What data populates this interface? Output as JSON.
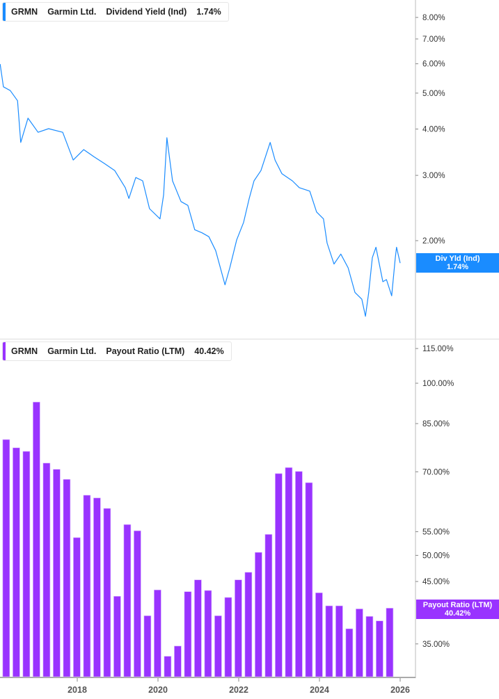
{
  "top_legend": {
    "ticker": "GRMN",
    "company": "Garmin Ltd.",
    "metric": "Dividend Yield (Ind)",
    "value": "1.74%"
  },
  "bottom_legend": {
    "ticker": "GRMN",
    "company": "Garmin Ltd.",
    "metric": "Payout Ratio (LTM)",
    "value": "40.42%"
  },
  "top_tag": {
    "label": "Div Yld (Ind)",
    "value": "1.74%"
  },
  "bottom_tag": {
    "label": "Payout Ratio (LTM)",
    "value": "40.42%"
  },
  "colors": {
    "line": "#1a8cff",
    "bars": "#9933ff",
    "tag_blue": "#1a8cff",
    "tag_purple": "#9933ff"
  },
  "chart_data": [
    {
      "type": "line",
      "title": "Dividend Yield (Ind)",
      "yscale": "log",
      "ylim": [
        1.2,
        9.0
      ],
      "yticks": [
        "8.00%",
        "7.00%",
        "6.00%",
        "5.00%",
        "4.00%",
        "3.00%",
        "2.00%"
      ],
      "ytick_values": [
        8,
        7,
        6,
        5,
        4,
        3,
        2
      ],
      "points": [
        [
          2016.09,
          5.99
        ],
        [
          2016.17,
          5.2
        ],
        [
          2016.34,
          5.08
        ],
        [
          2016.52,
          4.77
        ],
        [
          2016.6,
          3.68
        ],
        [
          2016.78,
          4.28
        ],
        [
          2017.03,
          3.92
        ],
        [
          2017.29,
          4.01
        ],
        [
          2017.64,
          3.92
        ],
        [
          2017.9,
          3.3
        ],
        [
          2018.16,
          3.52
        ],
        [
          2018.41,
          3.37
        ],
        [
          2018.67,
          3.23
        ],
        [
          2018.93,
          3.09
        ],
        [
          2019.19,
          2.78
        ],
        [
          2019.28,
          2.6
        ],
        [
          2019.45,
          2.96
        ],
        [
          2019.62,
          2.9
        ],
        [
          2019.79,
          2.44
        ],
        [
          2020.05,
          2.29
        ],
        [
          2020.14,
          2.66
        ],
        [
          2020.22,
          3.79
        ],
        [
          2020.36,
          2.9
        ],
        [
          2020.57,
          2.55
        ],
        [
          2020.74,
          2.49
        ],
        [
          2020.91,
          2.14
        ],
        [
          2021.09,
          2.1
        ],
        [
          2021.26,
          2.05
        ],
        [
          2021.43,
          1.88
        ],
        [
          2021.66,
          1.52
        ],
        [
          2021.78,
          1.69
        ],
        [
          2021.95,
          2.01
        ],
        [
          2022.12,
          2.24
        ],
        [
          2022.26,
          2.6
        ],
        [
          2022.38,
          2.9
        ],
        [
          2022.55,
          3.09
        ],
        [
          2022.78,
          3.68
        ],
        [
          2022.9,
          3.3
        ],
        [
          2023.07,
          3.03
        ],
        [
          2023.33,
          2.9
        ],
        [
          2023.5,
          2.78
        ],
        [
          2023.76,
          2.72
        ],
        [
          2023.93,
          2.39
        ],
        [
          2024.1,
          2.29
        ],
        [
          2024.19,
          1.97
        ],
        [
          2024.36,
          1.73
        ],
        [
          2024.53,
          1.84
        ],
        [
          2024.71,
          1.69
        ],
        [
          2024.88,
          1.45
        ],
        [
          2025.05,
          1.39
        ],
        [
          2025.14,
          1.25
        ],
        [
          2025.22,
          1.45
        ],
        [
          2025.31,
          1.8
        ],
        [
          2025.4,
          1.92
        ],
        [
          2025.57,
          1.55
        ],
        [
          2025.66,
          1.57
        ],
        [
          2025.79,
          1.42
        ],
        [
          2025.88,
          1.8
        ],
        [
          2025.91,
          1.92
        ],
        [
          2026.0,
          1.74
        ]
      ]
    },
    {
      "type": "bar",
      "title": "Payout Ratio (LTM)",
      "yscale": "log",
      "ylim": [
        30.7,
        120
      ],
      "yticks": [
        "115.00%",
        "100.00%",
        "85.00%",
        "70.00%",
        "55.00%",
        "50.00%",
        "45.00%",
        "35.00%"
      ],
      "ytick_values": [
        115,
        100,
        85,
        70,
        55,
        50,
        45,
        35
      ],
      "categories": [
        "2016-Q2",
        "2016-Q3",
        "2016-Q4",
        "2017-Q1",
        "2017-Q2",
        "2017-Q3",
        "2017-Q4",
        "2018-Q1",
        "2018-Q2",
        "2018-Q3",
        "2018-Q4",
        "2019-Q1",
        "2019-Q2",
        "2019-Q3",
        "2019-Q4",
        "2020-Q1",
        "2020-Q2",
        "2020-Q3",
        "2020-Q4",
        "2021-Q1",
        "2021-Q2",
        "2021-Q3",
        "2021-Q4",
        "2022-Q1",
        "2022-Q2",
        "2022-Q3",
        "2022-Q4",
        "2023-Q1",
        "2023-Q2",
        "2023-Q3",
        "2023-Q4",
        "2024-Q1",
        "2024-Q2",
        "2024-Q3",
        "2024-Q4",
        "2025-Q1",
        "2025-Q2",
        "2025-Q3",
        "2025-Q4"
      ],
      "values": [
        79.7,
        77.1,
        76.0,
        92.7,
        72.5,
        70.7,
        67.9,
        53.7,
        63.7,
        63.0,
        60.4,
        42.4,
        56.6,
        55.2,
        39.2,
        43.5,
        33.3,
        34.7,
        43.2,
        45.3,
        43.4,
        39.2,
        42.2,
        45.3,
        46.7,
        50.6,
        54.4,
        69.5,
        71.2,
        70.1,
        67.0,
        43.0,
        40.8,
        40.8,
        37.2,
        40.3,
        39.1,
        38.4,
        40.42
      ]
    },
    {
      "type": "axis",
      "xticks": [
        "2018",
        "2020",
        "2022",
        "2024",
        "2026"
      ],
      "xtick_values": [
        2018,
        2020,
        2022,
        2024,
        2026
      ]
    }
  ]
}
